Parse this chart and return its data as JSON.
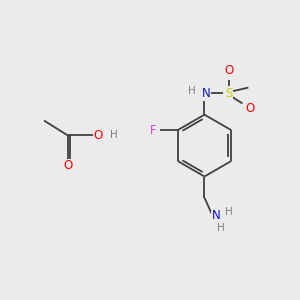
{
  "background_color": "#ebebeb",
  "figsize": [
    3.0,
    3.0
  ],
  "dpi": 100,
  "atom_colors": {
    "C": "#404040",
    "H": "#808080",
    "O": "#ff0000",
    "N": "#1111cc",
    "S": "#cccc00",
    "F": "#cc44cc",
    "bond": "#404040"
  },
  "bond_width": 1.3,
  "font_size_atom": 7.5,
  "font_size_H": 7.0
}
